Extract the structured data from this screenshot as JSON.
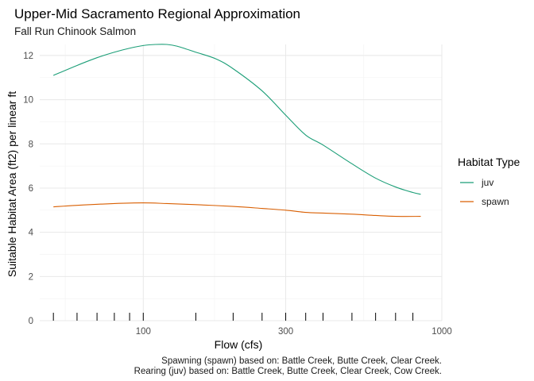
{
  "chart_data": {
    "type": "line",
    "title": "Upper-Mid Sacramento Regional Approximation",
    "subtitle": "Fall Run Chinook Salmon",
    "xlabel": "Flow (cfs)",
    "ylabel": "Suitable Habitat Area (ft2) per linear ft",
    "x_scale": "log10",
    "xlim": [
      45,
      1000
    ],
    "ylim": [
      0,
      12.5
    ],
    "x_ticks": [
      100,
      300,
      1000
    ],
    "y_ticks": [
      0,
      2,
      4,
      6,
      8,
      10,
      12
    ],
    "grid": true,
    "legend": {
      "title": "Habitat Type",
      "position": "right"
    },
    "rug_x": [
      50,
      60,
      70,
      80,
      90,
      100,
      150,
      200,
      250,
      300,
      350,
      400,
      500,
      600,
      700,
      800
    ],
    "series": [
      {
        "name": "juv",
        "color": "#1b9e77",
        "x": [
          50,
          60,
          70,
          80,
          90,
          100,
          110,
          120,
          130,
          150,
          175,
          200,
          250,
          300,
          350,
          400,
          500,
          600,
          700,
          800,
          850
        ],
        "y": [
          11.1,
          11.55,
          11.9,
          12.15,
          12.33,
          12.45,
          12.5,
          12.5,
          12.42,
          12.15,
          11.85,
          11.4,
          10.4,
          9.3,
          8.4,
          7.95,
          7.1,
          6.45,
          6.05,
          5.8,
          5.72
        ]
      },
      {
        "name": "spawn",
        "color": "#d95f02",
        "x": [
          50,
          60,
          80,
          100,
          120,
          150,
          200,
          250,
          300,
          350,
          400,
          500,
          600,
          700,
          850
        ],
        "y": [
          5.15,
          5.22,
          5.3,
          5.33,
          5.3,
          5.25,
          5.17,
          5.08,
          5.0,
          4.9,
          4.87,
          4.82,
          4.76,
          4.72,
          4.72
        ]
      }
    ],
    "captions": [
      "Spawning (spawn) based on: Battle Creek, Butte Creek, Clear Creek.",
      "Rearing (juv) based on: Battle Creek, Butte Creek, Clear Creek, Cow Creek."
    ]
  }
}
